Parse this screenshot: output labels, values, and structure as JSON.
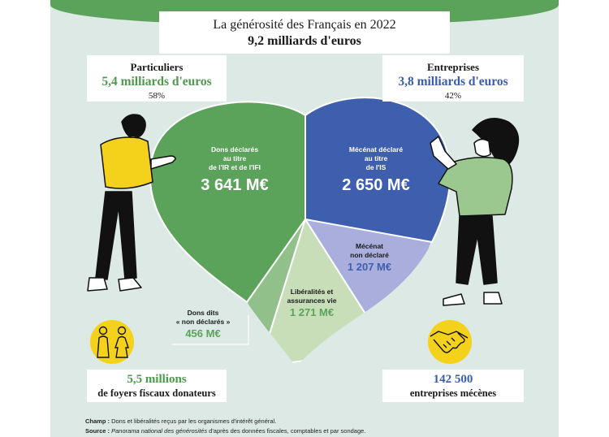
{
  "header": {
    "title_line1": "La générosité des Français en 2022",
    "title_line2": "9,2 milliards d'euros"
  },
  "particuliers": {
    "label": "Particuliers",
    "amount": "5,4 milliards d'euros",
    "share": "58%"
  },
  "entreprises": {
    "label": "Entreprises",
    "amount": "3,8 milliards d'euros",
    "share": "42%"
  },
  "stats": {
    "foyers_value": "5,5 millions",
    "foyers_label": "de foyers fiscaux donateurs",
    "entreprises_value": "142 500",
    "entreprises_label": "entreprises mécènes"
  },
  "chart_data": {
    "type": "pie",
    "title": "La générosité des Français en 2022",
    "subtitle": "9,2 milliards d'euros",
    "unit": "M€",
    "series": [
      {
        "name": "",
        "slices": [
          {
            "label": "Dons déclarés au titre de l'IR et de l'IFI",
            "value": 3641,
            "value_text": "3 641 M€",
            "group": "Particuliers",
            "color": "#5ba35a"
          },
          {
            "label": "Mécénat déclaré au titre de l'IS",
            "value": 2650,
            "value_text": "2 650 M€",
            "group": "Entreprises",
            "color": "#3e5fad"
          },
          {
            "label": "Mécénat non déclaré",
            "value": 1207,
            "value_text": "1 207 M€",
            "group": "Entreprises",
            "color": "#a9aedd"
          },
          {
            "label": "Libéralités et assurances vie",
            "value": 1271,
            "value_text": "1 271 M€",
            "group": "Particuliers",
            "color": "#c7deb9"
          },
          {
            "label": "Dons dits « non déclarés »",
            "value": 456,
            "value_text": "456 M€",
            "group": "Particuliers",
            "color": "#92c08a"
          }
        ]
      }
    ],
    "label_lines": {
      "ir": [
        "Dons déclarés",
        "au titre",
        "de l'IR et de l'IFI"
      ],
      "is": [
        "Mécénat déclaré",
        "au titre",
        "de l'IS"
      ],
      "nd_ent": [
        "Mécénat",
        "non déclaré"
      ],
      "lib": [
        "Libéralités et",
        "assurances vie"
      ],
      "nd_part": [
        "Dons dits",
        "« non déclarés »"
      ]
    },
    "colors": {
      "particuliers": "#5ba35a",
      "entreprises": "#3e5fad",
      "background": "#dce9e4"
    }
  },
  "footnote": {
    "champ_label": "Champ :",
    "champ_text": " Dons et libéralités reçus par les organismes d'intérêt général.",
    "source_label": "Source :",
    "source_italic": " Panorama national des générosités",
    "source_text": " d'après des données fiscales, comptables et par sondage."
  }
}
